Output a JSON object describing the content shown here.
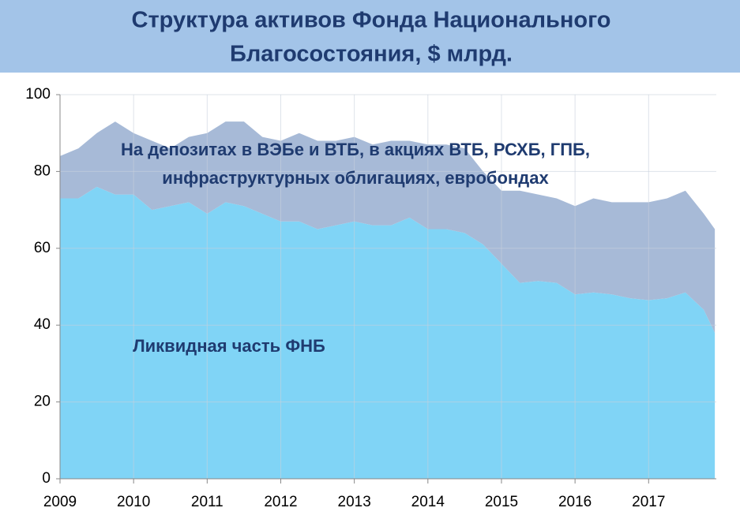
{
  "chart_data": {
    "type": "stacked_area",
    "title": [
      "Структура активов Фонда Национального",
      "Благосостояния, $ млрд."
    ],
    "annotations": [
      {
        "lines": [
          "На депозитах в ВЭБе и ВТБ, в акциях ВТБ, РСХБ, ГПБ,",
          "инфраструктурных облигациях, евробондах"
        ]
      },
      {
        "lines": [
          "Ликвидная часть ФНБ"
        ]
      }
    ],
    "x": [
      2009,
      2009.25,
      2009.5,
      2009.75,
      2010,
      2010.25,
      2010.5,
      2010.75,
      2011,
      2011.25,
      2011.5,
      2011.75,
      2012,
      2012.25,
      2012.5,
      2012.75,
      2013,
      2013.25,
      2013.5,
      2013.75,
      2014,
      2014.25,
      2014.5,
      2014.75,
      2015,
      2015.25,
      2015.5,
      2015.75,
      2016,
      2016.25,
      2016.5,
      2016.75,
      2017,
      2017.25,
      2017.5,
      2017.75,
      2017.9
    ],
    "series": [
      {
        "color": "#80d4f6",
        "values": [
          73,
          73,
          76,
          74,
          74,
          70,
          71,
          72,
          69,
          72,
          71,
          69,
          67,
          67,
          65,
          66,
          67,
          66,
          66,
          68,
          65,
          65,
          64,
          61,
          56,
          51,
          51.5,
          51,
          48,
          48.5,
          48,
          47,
          46.5,
          47,
          48.5,
          44,
          38
        ]
      },
      {
        "color": "#a7bad7",
        "values": [
          11,
          13,
          14,
          19,
          16,
          18,
          15,
          17,
          21,
          21,
          22,
          20,
          21,
          23,
          23,
          22,
          22,
          21,
          22,
          20,
          22,
          22,
          22,
          19,
          19,
          24,
          22.5,
          22,
          23,
          24.5,
          24,
          25,
          25.5,
          26,
          26.5,
          25,
          27
        ]
      }
    ],
    "xlim": [
      2009,
      2017.92
    ],
    "xticks": [
      2009,
      2010,
      2011,
      2012,
      2013,
      2014,
      2015,
      2016,
      2017
    ],
    "ylim": [
      0,
      100
    ],
    "yticks": [
      0,
      20,
      40,
      60,
      80,
      100
    ],
    "grid": true
  }
}
